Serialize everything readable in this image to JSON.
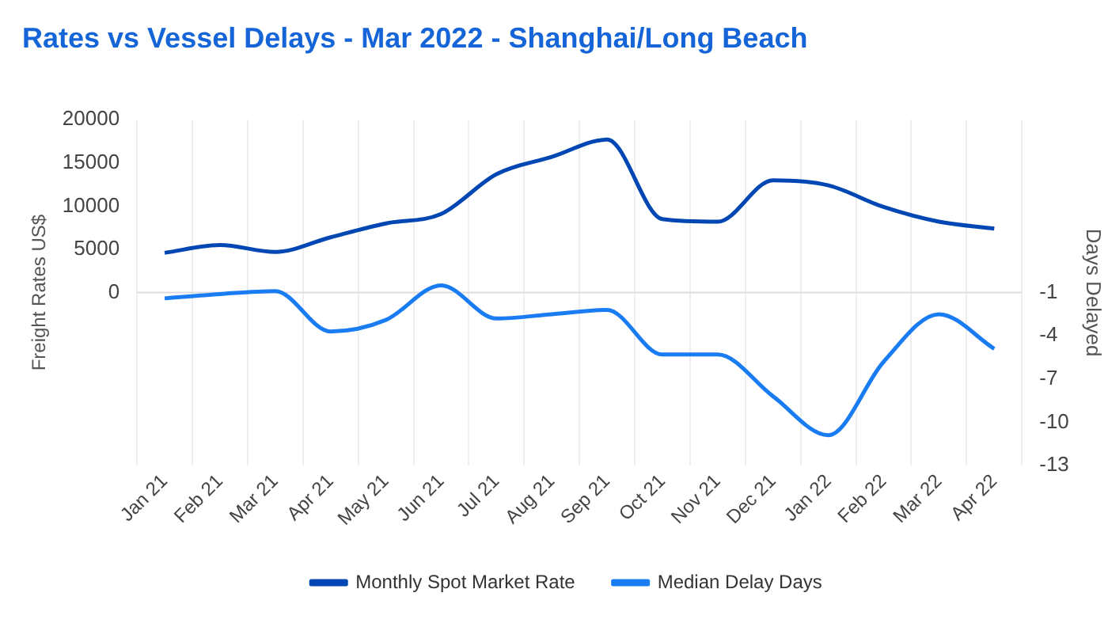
{
  "chart_data": {
    "type": "line",
    "title": "Rates vs Vessel Delays - Mar 2022 - Shanghai/Long Beach",
    "ylabel": "Freight Rates US$",
    "y2label": "Days Delayed",
    "categories": [
      "Jan 21",
      "Feb 21",
      "Mar 21",
      "Apr 21",
      "May 21",
      "Jun 21",
      "Jul 21",
      "Aug 21",
      "Sep 21",
      "Oct 21",
      "Nov 21",
      "Dec 21",
      "Jan 22",
      "Feb 22",
      "Mar 22",
      "Apr 22"
    ],
    "series": [
      {
        "name": "Monthly Spot Market Rate",
        "color": "#0047b3",
        "values": [
          4600,
          5500,
          4700,
          6400,
          8000,
          9100,
          13700,
          15700,
          17700,
          8500,
          8200,
          13000,
          12400,
          9900,
          8200,
          7400
        ]
      },
      {
        "name": "Median Delay Days",
        "color": "#1a7cf2",
        "axis": "y2",
        "values": [
          -1.4,
          -1.1,
          -0.9,
          -3.7,
          -2.9,
          -0.5,
          -2.8,
          -2.5,
          -2.2,
          -5.3,
          -5.3,
          -8.2,
          -10.9,
          -5.8,
          -2.5,
          -4.9
        ]
      }
    ],
    "ylim": [
      -20000,
      20000
    ],
    "yticks": [
      0,
      5000,
      10000,
      15000,
      20000
    ],
    "y2lim": [
      -13,
      11
    ],
    "y2ticks": [
      -13,
      -10,
      -7,
      -4,
      -1
    ],
    "ref_lines": [
      {
        "axis": "y",
        "value": 0,
        "color": "#dddddd"
      }
    ],
    "grid": "x",
    "legend": "bottom",
    "marker": "none",
    "line_style": "solid"
  }
}
